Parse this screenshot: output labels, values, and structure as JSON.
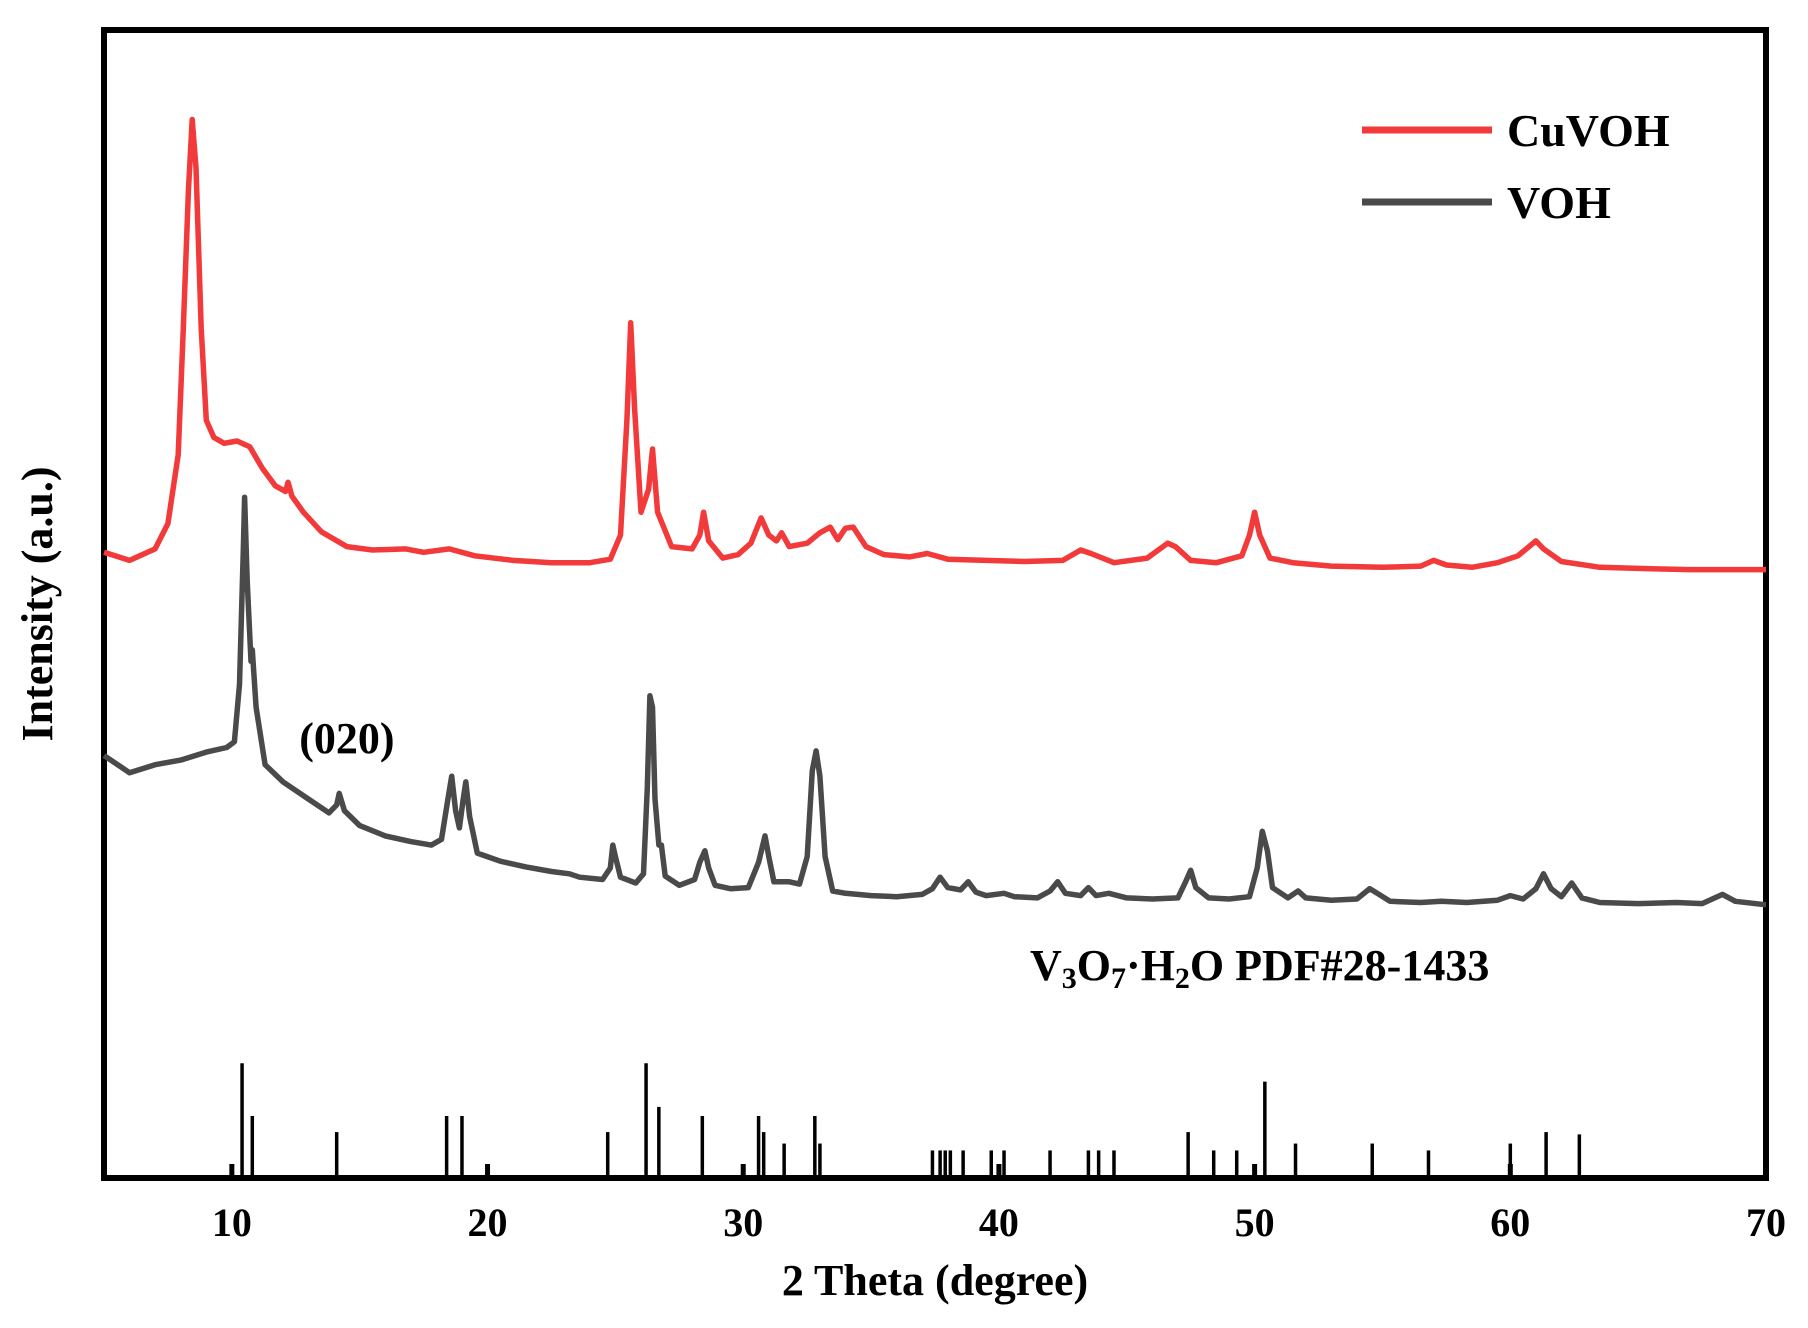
{
  "chart_data": {
    "type": "line",
    "title": "",
    "xlabel": "2 Theta (degree)",
    "ylabel": "Intensity (a.u.)",
    "xlim": [
      5,
      70
    ],
    "ylim": [
      0,
      1
    ],
    "x_ticks": [
      10,
      20,
      30,
      40,
      50,
      60,
      70
    ],
    "y_ticks": [],
    "grid": false,
    "legend_position": "top-right",
    "series": [
      {
        "name": "CuVOH",
        "color": "#f23a3a",
        "points": [
          [
            5.0,
            0.545
          ],
          [
            6.0,
            0.538
          ],
          [
            7.0,
            0.548
          ],
          [
            7.5,
            0.57
          ],
          [
            7.9,
            0.63
          ],
          [
            8.1,
            0.74
          ],
          [
            8.3,
            0.86
          ],
          [
            8.45,
            0.922
          ],
          [
            8.6,
            0.88
          ],
          [
            8.8,
            0.74
          ],
          [
            9.0,
            0.66
          ],
          [
            9.3,
            0.645
          ],
          [
            9.7,
            0.64
          ],
          [
            10.2,
            0.642
          ],
          [
            10.7,
            0.637
          ],
          [
            11.2,
            0.618
          ],
          [
            11.7,
            0.603
          ],
          [
            12.1,
            0.598
          ],
          [
            12.2,
            0.606
          ],
          [
            12.35,
            0.594
          ],
          [
            12.8,
            0.58
          ],
          [
            13.5,
            0.563
          ],
          [
            14.5,
            0.55
          ],
          [
            15.5,
            0.547
          ],
          [
            16.8,
            0.548
          ],
          [
            17.5,
            0.545
          ],
          [
            18.5,
            0.548
          ],
          [
            19.5,
            0.542
          ],
          [
            21,
            0.538
          ],
          [
            22.5,
            0.536
          ],
          [
            24,
            0.536
          ],
          [
            24.8,
            0.539
          ],
          [
            25.2,
            0.56
          ],
          [
            25.45,
            0.66
          ],
          [
            25.6,
            0.745
          ],
          [
            25.75,
            0.67
          ],
          [
            26.0,
            0.58
          ],
          [
            26.3,
            0.6
          ],
          [
            26.45,
            0.635
          ],
          [
            26.65,
            0.58
          ],
          [
            27.2,
            0.55
          ],
          [
            28.0,
            0.548
          ],
          [
            28.3,
            0.56
          ],
          [
            28.45,
            0.58
          ],
          [
            28.65,
            0.555
          ],
          [
            29.2,
            0.54
          ],
          [
            29.8,
            0.543
          ],
          [
            30.3,
            0.553
          ],
          [
            30.7,
            0.575
          ],
          [
            31.0,
            0.56
          ],
          [
            31.3,
            0.555
          ],
          [
            31.5,
            0.562
          ],
          [
            31.8,
            0.55
          ],
          [
            32.5,
            0.553
          ],
          [
            33.0,
            0.562
          ],
          [
            33.4,
            0.567
          ],
          [
            33.7,
            0.556
          ],
          [
            34.0,
            0.566
          ],
          [
            34.3,
            0.567
          ],
          [
            34.8,
            0.55
          ],
          [
            35.5,
            0.543
          ],
          [
            36.5,
            0.541
          ],
          [
            37.2,
            0.544
          ],
          [
            38.0,
            0.539
          ],
          [
            39.5,
            0.538
          ],
          [
            41,
            0.537
          ],
          [
            42.5,
            0.538
          ],
          [
            43.2,
            0.547
          ],
          [
            43.6,
            0.544
          ],
          [
            44.5,
            0.536
          ],
          [
            45.8,
            0.54
          ],
          [
            46.6,
            0.553
          ],
          [
            46.9,
            0.55
          ],
          [
            47.5,
            0.538
          ],
          [
            48.5,
            0.536
          ],
          [
            49.5,
            0.542
          ],
          [
            49.8,
            0.56
          ],
          [
            50.0,
            0.58
          ],
          [
            50.2,
            0.56
          ],
          [
            50.6,
            0.54
          ],
          [
            51.5,
            0.536
          ],
          [
            53,
            0.533
          ],
          [
            55,
            0.532
          ],
          [
            56.5,
            0.533
          ],
          [
            57.0,
            0.538
          ],
          [
            57.5,
            0.534
          ],
          [
            58.5,
            0.532
          ],
          [
            59.5,
            0.536
          ],
          [
            60.3,
            0.542
          ],
          [
            61.0,
            0.555
          ],
          [
            61.3,
            0.548
          ],
          [
            62.0,
            0.537
          ],
          [
            63.5,
            0.532
          ],
          [
            65,
            0.531
          ],
          [
            67,
            0.53
          ],
          [
            70,
            0.53
          ]
        ]
      },
      {
        "name": "VOH",
        "color": "#4a4a4a",
        "points": [
          [
            5.0,
            0.368
          ],
          [
            6.0,
            0.353
          ],
          [
            7.0,
            0.36
          ],
          [
            8.0,
            0.364
          ],
          [
            9.0,
            0.371
          ],
          [
            9.8,
            0.375
          ],
          [
            10.1,
            0.38
          ],
          [
            10.3,
            0.43
          ],
          [
            10.45,
            0.55
          ],
          [
            10.5,
            0.593
          ],
          [
            10.6,
            0.52
          ],
          [
            10.75,
            0.45
          ],
          [
            10.8,
            0.46
          ],
          [
            10.95,
            0.41
          ],
          [
            11.3,
            0.36
          ],
          [
            12.0,
            0.345
          ],
          [
            13.0,
            0.33
          ],
          [
            13.8,
            0.318
          ],
          [
            14.1,
            0.325
          ],
          [
            14.2,
            0.335
          ],
          [
            14.4,
            0.32
          ],
          [
            15,
            0.307
          ],
          [
            16,
            0.298
          ],
          [
            17,
            0.293
          ],
          [
            17.8,
            0.29
          ],
          [
            18.2,
            0.295
          ],
          [
            18.45,
            0.33
          ],
          [
            18.6,
            0.35
          ],
          [
            18.75,
            0.32
          ],
          [
            18.9,
            0.305
          ],
          [
            19.05,
            0.33
          ],
          [
            19.15,
            0.345
          ],
          [
            19.3,
            0.315
          ],
          [
            19.6,
            0.283
          ],
          [
            20.5,
            0.276
          ],
          [
            21.5,
            0.271
          ],
          [
            22.5,
            0.267
          ],
          [
            23.2,
            0.265
          ],
          [
            23.6,
            0.262
          ],
          [
            24.5,
            0.26
          ],
          [
            24.8,
            0.27
          ],
          [
            24.9,
            0.29
          ],
          [
            25.0,
            0.28
          ],
          [
            25.2,
            0.262
          ],
          [
            25.8,
            0.257
          ],
          [
            26.1,
            0.265
          ],
          [
            26.25,
            0.34
          ],
          [
            26.35,
            0.42
          ],
          [
            26.45,
            0.41
          ],
          [
            26.55,
            0.33
          ],
          [
            26.7,
            0.29
          ],
          [
            26.8,
            0.29
          ],
          [
            26.95,
            0.263
          ],
          [
            27.5,
            0.255
          ],
          [
            28.1,
            0.26
          ],
          [
            28.3,
            0.275
          ],
          [
            28.5,
            0.285
          ],
          [
            28.65,
            0.27
          ],
          [
            28.9,
            0.255
          ],
          [
            29.5,
            0.252
          ],
          [
            30.2,
            0.253
          ],
          [
            30.6,
            0.275
          ],
          [
            30.85,
            0.298
          ],
          [
            31.0,
            0.28
          ],
          [
            31.2,
            0.258
          ],
          [
            31.5,
            0.258
          ],
          [
            31.8,
            0.258
          ],
          [
            32.2,
            0.256
          ],
          [
            32.5,
            0.28
          ],
          [
            32.7,
            0.355
          ],
          [
            32.85,
            0.372
          ],
          [
            33.0,
            0.35
          ],
          [
            33.2,
            0.28
          ],
          [
            33.5,
            0.25
          ],
          [
            34,
            0.248
          ],
          [
            35,
            0.246
          ],
          [
            36,
            0.245
          ],
          [
            37,
            0.247
          ],
          [
            37.4,
            0.252
          ],
          [
            37.7,
            0.262
          ],
          [
            38.0,
            0.253
          ],
          [
            38.5,
            0.251
          ],
          [
            38.8,
            0.258
          ],
          [
            39.1,
            0.249
          ],
          [
            39.5,
            0.246
          ],
          [
            40.2,
            0.248
          ],
          [
            40.6,
            0.245
          ],
          [
            41.5,
            0.244
          ],
          [
            42.0,
            0.25
          ],
          [
            42.3,
            0.258
          ],
          [
            42.6,
            0.248
          ],
          [
            43.2,
            0.246
          ],
          [
            43.5,
            0.253
          ],
          [
            43.8,
            0.246
          ],
          [
            44.3,
            0.248
          ],
          [
            45,
            0.244
          ],
          [
            46,
            0.243
          ],
          [
            47.0,
            0.244
          ],
          [
            47.3,
            0.258
          ],
          [
            47.5,
            0.268
          ],
          [
            47.7,
            0.253
          ],
          [
            48.2,
            0.244
          ],
          [
            49,
            0.243
          ],
          [
            49.8,
            0.245
          ],
          [
            50.1,
            0.27
          ],
          [
            50.3,
            0.302
          ],
          [
            50.5,
            0.285
          ],
          [
            50.7,
            0.253
          ],
          [
            51.3,
            0.244
          ],
          [
            51.7,
            0.25
          ],
          [
            52.0,
            0.244
          ],
          [
            53,
            0.242
          ],
          [
            54,
            0.243
          ],
          [
            54.5,
            0.252
          ],
          [
            54.8,
            0.248
          ],
          [
            55.3,
            0.241
          ],
          [
            56.5,
            0.24
          ],
          [
            57.3,
            0.241
          ],
          [
            58.3,
            0.24
          ],
          [
            59.5,
            0.242
          ],
          [
            60.0,
            0.246
          ],
          [
            60.5,
            0.243
          ],
          [
            61.0,
            0.252
          ],
          [
            61.3,
            0.265
          ],
          [
            61.6,
            0.252
          ],
          [
            62.0,
            0.245
          ],
          [
            62.4,
            0.257
          ],
          [
            62.8,
            0.244
          ],
          [
            63.5,
            0.24
          ],
          [
            65,
            0.239
          ],
          [
            66.5,
            0.24
          ],
          [
            67.5,
            0.239
          ],
          [
            68.3,
            0.247
          ],
          [
            68.8,
            0.241
          ],
          [
            70,
            0.238
          ]
        ]
      }
    ],
    "reference": {
      "label_parts": [
        {
          "text": "V",
          "sub": false
        },
        {
          "text": "3",
          "sub": true
        },
        {
          "text": "O",
          "sub": false
        },
        {
          "text": "7",
          "sub": true
        },
        {
          "text": "·H",
          "sub": false
        },
        {
          "text": "2",
          "sub": true
        },
        {
          "text": "O PDF#28-1433",
          "sub": false
        }
      ],
      "color": "#000000",
      "sticks": [
        [
          10.4,
          0.1
        ],
        [
          10.8,
          0.054
        ],
        [
          14.1,
          0.04
        ],
        [
          18.4,
          0.054
        ],
        [
          19.0,
          0.054
        ],
        [
          24.7,
          0.04
        ],
        [
          26.2,
          0.1
        ],
        [
          26.7,
          0.062
        ],
        [
          28.4,
          0.054
        ],
        [
          30.6,
          0.054
        ],
        [
          30.8,
          0.04
        ],
        [
          31.6,
          0.03
        ],
        [
          32.8,
          0.054
        ],
        [
          33.0,
          0.03
        ],
        [
          37.4,
          0.024
        ],
        [
          37.7,
          0.024
        ],
        [
          37.9,
          0.024
        ],
        [
          38.1,
          0.024
        ],
        [
          38.6,
          0.024
        ],
        [
          39.7,
          0.024
        ],
        [
          40.2,
          0.024
        ],
        [
          42.0,
          0.024
        ],
        [
          43.5,
          0.024
        ],
        [
          43.9,
          0.024
        ],
        [
          44.5,
          0.024
        ],
        [
          47.4,
          0.04
        ],
        [
          48.4,
          0.024
        ],
        [
          49.3,
          0.024
        ],
        [
          50.4,
          0.084
        ],
        [
          51.6,
          0.03
        ],
        [
          54.6,
          0.03
        ],
        [
          56.8,
          0.024
        ],
        [
          60.0,
          0.03
        ],
        [
          61.4,
          0.04
        ],
        [
          62.7,
          0.038
        ]
      ]
    },
    "annotations": [
      {
        "text": "(020)",
        "x": 14.5,
        "y": 0.37
      }
    ]
  }
}
